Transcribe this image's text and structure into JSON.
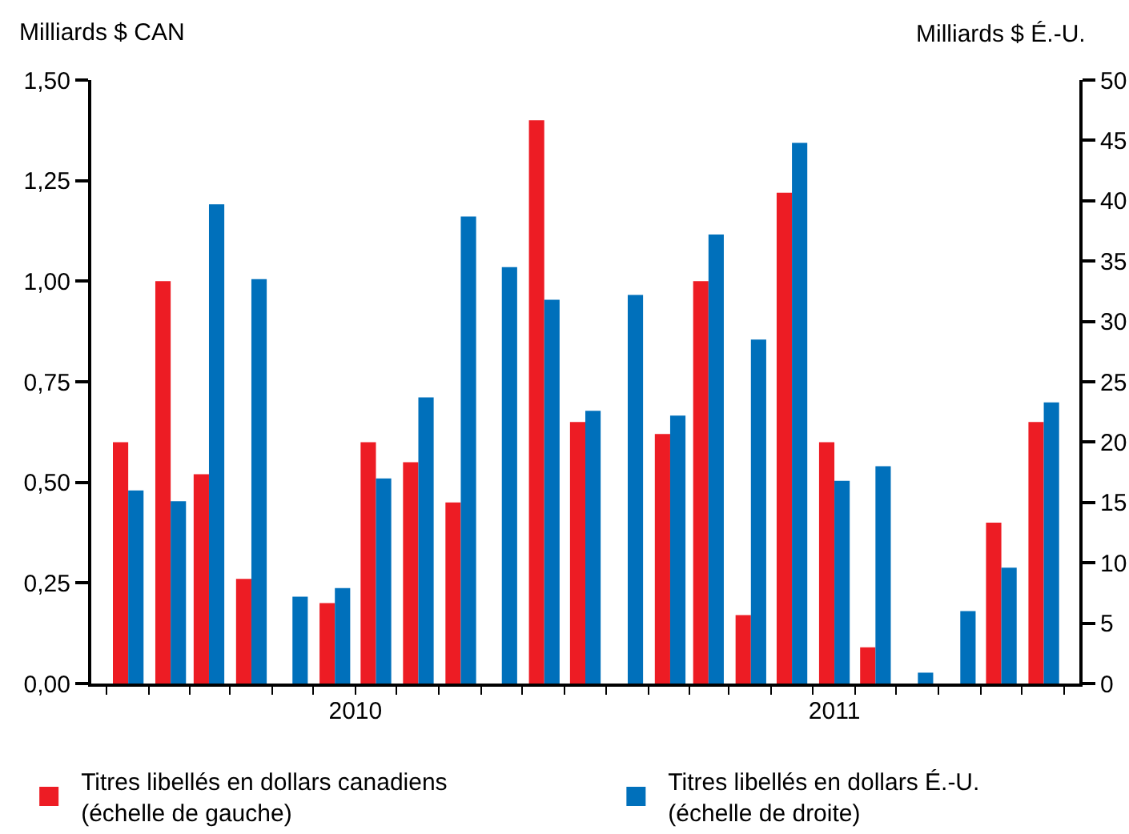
{
  "chart_data": {
    "type": "bar",
    "ylabel": "Milliards $ CAN",
    "y2label": "Milliards $ É.-U.",
    "x": [
      "2010-01",
      "2010-02",
      "2010-03",
      "2010-04",
      "2010-05",
      "2010-06",
      "2010-07",
      "2010-08",
      "2010-09",
      "2010-10",
      "2010-11",
      "2010-12",
      "2011-01",
      "2011-02",
      "2011-03",
      "2011-04",
      "2011-05",
      "2011-06",
      "2011-07",
      "2011-08",
      "2011-09",
      "2011-10",
      "2011-11"
    ],
    "series": [
      {
        "name": "Titres libellés en dollars canadiens\n(échelle de gauche)",
        "color": "#ed1c24",
        "values": [
          0.6,
          1.0,
          0.52,
          0.26,
          null,
          0.2,
          0.6,
          0.55,
          0.45,
          null,
          1.4,
          0.65,
          null,
          0.62,
          1.0,
          0.17,
          1.22,
          0.6,
          0.09,
          null,
          null,
          0.4,
          0.65
        ]
      },
      {
        "name": "Titres libellés en dollars É.-U.\n(échelle de droite)",
        "color": "#0070bb",
        "axis": "y2",
        "values": [
          16.0,
          15.1,
          39.7,
          33.5,
          7.2,
          7.9,
          17.0,
          23.7,
          38.7,
          34.5,
          31.8,
          22.6,
          32.2,
          22.2,
          37.2,
          28.5,
          44.8,
          16.8,
          18.0,
          0.9,
          6.0,
          9.6,
          23.3
        ]
      }
    ],
    "xlim": [
      "2009-12-05",
      "2011-11-27"
    ],
    "xticks": [
      {
        "value": "2010-06-16",
        "label": "2010"
      },
      {
        "value": "2011-06-01",
        "label": "2011"
      },
      {
        "value": "2009-12-16",
        "label": null
      },
      {
        "value": "2010-01-16",
        "label": null
      },
      {
        "value": "2010-02-15",
        "label": null
      },
      {
        "value": "2010-03-16",
        "label": null
      },
      {
        "value": "2010-04-16",
        "label": null
      },
      {
        "value": "2010-05-16",
        "label": null
      },
      {
        "value": "2010-06-16T00:00:01",
        "label": null
      },
      {
        "value": "2010-07-16",
        "label": null
      },
      {
        "value": "2010-08-16",
        "label": null
      },
      {
        "value": "2010-09-16",
        "label": null
      },
      {
        "value": "2010-10-16",
        "label": null
      },
      {
        "value": "2010-11-16",
        "label": null
      },
      {
        "value": "2010-12-16",
        "label": null
      },
      {
        "value": "2011-01-16",
        "label": null
      },
      {
        "value": "2011-02-15",
        "label": null
      },
      {
        "value": "2011-03-16",
        "label": null
      },
      {
        "value": "2011-04-16",
        "label": null
      },
      {
        "value": "2011-05-16",
        "label": null
      },
      {
        "value": "2011-06-16",
        "label": null
      },
      {
        "value": "2011-07-16",
        "label": null
      },
      {
        "value": "2011-08-16",
        "label": null
      },
      {
        "value": "2011-09-16",
        "label": null
      },
      {
        "value": "2011-10-16",
        "label": null
      },
      {
        "value": "2011-11-16",
        "label": null
      }
    ],
    "ylim": [
      0,
      1.5
    ],
    "yticks": [
      {
        "value": 0,
        "label": "0,00"
      },
      {
        "value": 0.25,
        "label": "0,25"
      },
      {
        "value": 0.5,
        "label": "0,50"
      },
      {
        "value": 0.75,
        "label": "0,75"
      },
      {
        "value": 1,
        "label": "1,00"
      },
      {
        "value": 1.25,
        "label": "1,25"
      },
      {
        "value": 1.5,
        "label": "1,50"
      }
    ],
    "y2lim": [
      0,
      50
    ],
    "y2ticks": [
      0,
      5,
      10,
      15,
      20,
      25,
      30,
      35,
      40,
      45,
      50
    ],
    "grid": false,
    "legend": "bottom"
  }
}
